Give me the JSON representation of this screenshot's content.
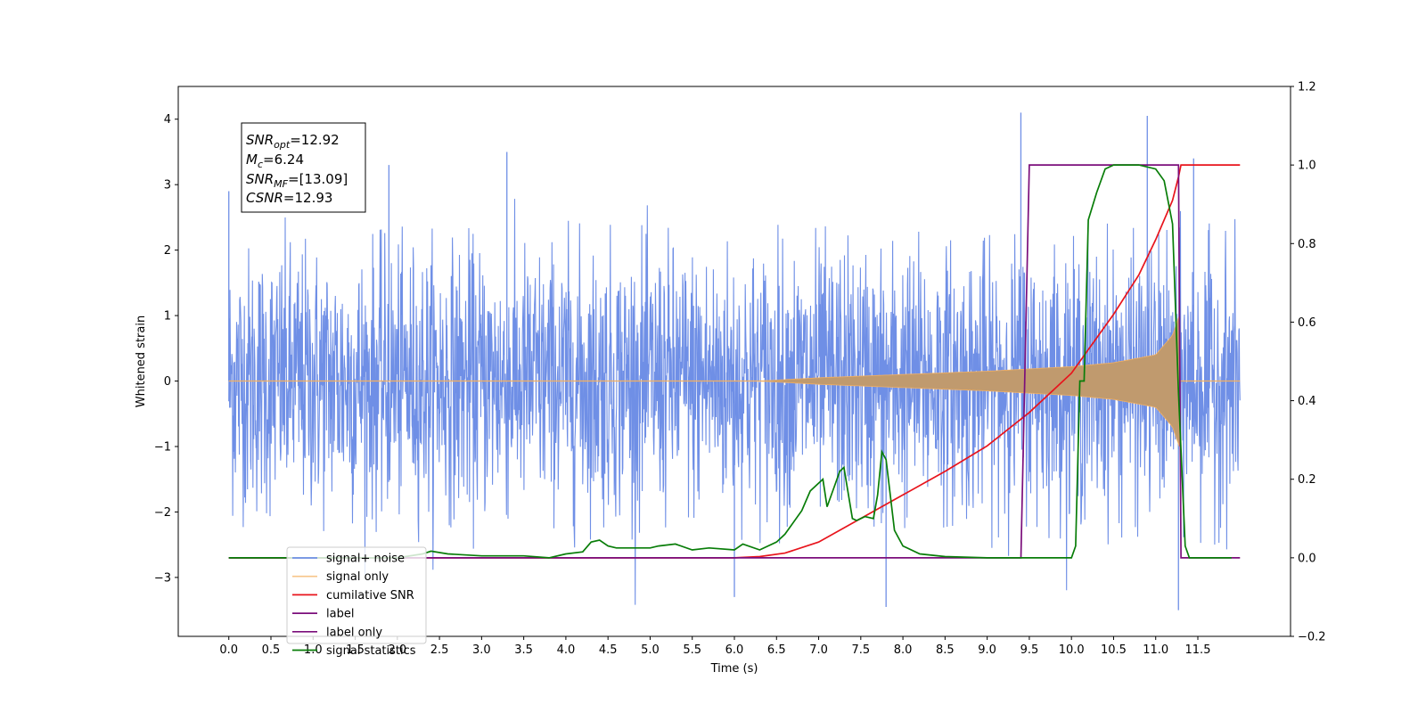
{
  "chart_data": {
    "type": "line",
    "title": "",
    "xlabel": "Time (s)",
    "ylabel": "Whitened strain",
    "y2label": "",
    "xlim": [
      -0.6,
      12.6
    ],
    "ylim": [
      -3.9,
      4.5
    ],
    "y2lim": [
      -0.2,
      1.2
    ],
    "x_ticks": [
      0.0,
      0.5,
      1.0,
      1.5,
      2.0,
      2.5,
      3.0,
      3.5,
      4.0,
      4.5,
      5.0,
      5.5,
      6.0,
      6.5,
      7.0,
      7.5,
      8.0,
      8.5,
      9.0,
      9.5,
      10.0,
      10.5,
      11.0,
      11.5
    ],
    "x_tick_labels": [
      "0.0",
      "0.5",
      "1.0",
      "1.5",
      "2.0",
      "2.5",
      "3.0",
      "3.5",
      "4.0",
      "4.5",
      "5.0",
      "5.5",
      "6.0",
      "6.5",
      "7.0",
      "7.5",
      "8.0",
      "8.5",
      "9.0",
      "9.5",
      "10.0",
      "10.5",
      "11.0",
      "11.5"
    ],
    "y_ticks": [
      -3,
      -2,
      -1,
      0,
      1,
      2,
      3,
      4
    ],
    "y_tick_labels": [
      "−3",
      "−2",
      "−1",
      "0",
      "1",
      "2",
      "3",
      "4"
    ],
    "y2_ticks": [
      -0.2,
      0.0,
      0.2,
      0.4,
      0.6,
      0.8,
      1.0,
      1.2
    ],
    "y2_tick_labels": [
      "−0.2",
      "0.0",
      "0.2",
      "0.4",
      "0.6",
      "0.8",
      "1.0",
      "1.2"
    ],
    "grid": false,
    "legend_position": "lower-left",
    "info_box": {
      "snr_opt": {
        "base": "SNR",
        "sub": "opt",
        "value": "=12.92"
      },
      "mc": {
        "base": "M",
        "sub": "c",
        "value": "=6.24"
      },
      "snr_mf": {
        "base": "SNR",
        "sub": "MF",
        "value": "=[13.09]"
      },
      "csnr": {
        "base": "CSNR",
        "sub": "",
        "value": "=12.93"
      }
    },
    "series": [
      {
        "name": "signal+ noise",
        "axis": "left",
        "color": "#6f8fe6",
        "kind": "noise",
        "x_range": [
          0.0,
          12.0
        ],
        "sigma": 1.0,
        "peak_examples": [
          [
            0.0,
            2.9
          ],
          [
            1.9,
            3.3
          ],
          [
            3.3,
            3.5
          ],
          [
            9.4,
            4.1
          ],
          [
            10.9,
            4.05
          ],
          [
            11.45,
            3.4
          ],
          [
            6.0,
            -3.3
          ],
          [
            7.8,
            -3.45
          ],
          [
            11.27,
            -3.5
          ]
        ]
      },
      {
        "name": "signal only",
        "axis": "left",
        "color": "#f4b060",
        "kind": "chirp_envelope",
        "x_range": [
          0.0,
          12.0
        ],
        "onset": 6.3,
        "coalescence": 11.28,
        "envelope": [
          [
            6.3,
            0.0
          ],
          [
            7.0,
            0.05
          ],
          [
            8.0,
            0.1
          ],
          [
            9.0,
            0.15
          ],
          [
            10.0,
            0.22
          ],
          [
            10.5,
            0.28
          ],
          [
            11.0,
            0.4
          ],
          [
            11.2,
            0.7
          ],
          [
            11.28,
            1.0
          ]
        ]
      },
      {
        "name": "cumilative SNR",
        "axis": "right",
        "color": "#e8141c",
        "x": [
          0.0,
          6.0,
          6.3,
          6.6,
          7.0,
          7.5,
          8.0,
          8.5,
          9.0,
          9.5,
          10.0,
          10.5,
          10.8,
          11.0,
          11.2,
          11.27,
          11.3,
          12.0
        ],
        "y": [
          0.0,
          0.0,
          0.003,
          0.012,
          0.04,
          0.1,
          0.16,
          0.22,
          0.285,
          0.37,
          0.47,
          0.62,
          0.72,
          0.81,
          0.91,
          0.97,
          1.0,
          1.0
        ]
      },
      {
        "name": "label",
        "axis": "right",
        "color": "#7b0e7b",
        "x": [
          0.0,
          9.4,
          9.5,
          11.27,
          11.3,
          12.0
        ],
        "y": [
          0.0,
          0.0,
          1.0,
          1.0,
          0.0,
          0.0
        ]
      },
      {
        "name": "label only",
        "axis": "right",
        "color": "#7b0e7b",
        "hidden": true,
        "x": [],
        "y": []
      },
      {
        "name": "signal statistics",
        "axis": "right",
        "color": "#087d08",
        "x": [
          0.0,
          2.0,
          2.3,
          2.4,
          2.6,
          3.0,
          3.5,
          3.8,
          4.0,
          4.2,
          4.3,
          4.4,
          4.5,
          4.6,
          4.8,
          5.0,
          5.1,
          5.3,
          5.5,
          5.7,
          6.0,
          6.1,
          6.3,
          6.5,
          6.6,
          6.8,
          6.9,
          7.0,
          7.05,
          7.1,
          7.2,
          7.25,
          7.3,
          7.4,
          7.45,
          7.5,
          7.55,
          7.65,
          7.7,
          7.75,
          7.8,
          7.9,
          8.0,
          8.2,
          8.5,
          9.0,
          9.5,
          10.0,
          10.05,
          10.1,
          10.15,
          10.2,
          10.3,
          10.4,
          10.5,
          10.8,
          11.0,
          11.1,
          11.2,
          11.27,
          11.35,
          11.4,
          11.5,
          11.9
        ],
        "y": [
          0.0,
          0.0,
          0.01,
          0.017,
          0.01,
          0.005,
          0.005,
          0.0,
          0.01,
          0.015,
          0.04,
          0.045,
          0.03,
          0.025,
          0.025,
          0.025,
          0.03,
          0.035,
          0.02,
          0.025,
          0.02,
          0.035,
          0.02,
          0.04,
          0.06,
          0.12,
          0.17,
          0.19,
          0.2,
          0.13,
          0.19,
          0.22,
          0.23,
          0.1,
          0.095,
          0.1,
          0.105,
          0.1,
          0.16,
          0.27,
          0.25,
          0.07,
          0.03,
          0.01,
          0.003,
          0.0,
          0.0,
          0.0,
          0.03,
          0.45,
          0.45,
          0.86,
          0.93,
          0.99,
          1.0,
          1.0,
          0.99,
          0.96,
          0.85,
          0.42,
          0.03,
          0.0,
          0.0,
          0.0
        ]
      }
    ]
  }
}
